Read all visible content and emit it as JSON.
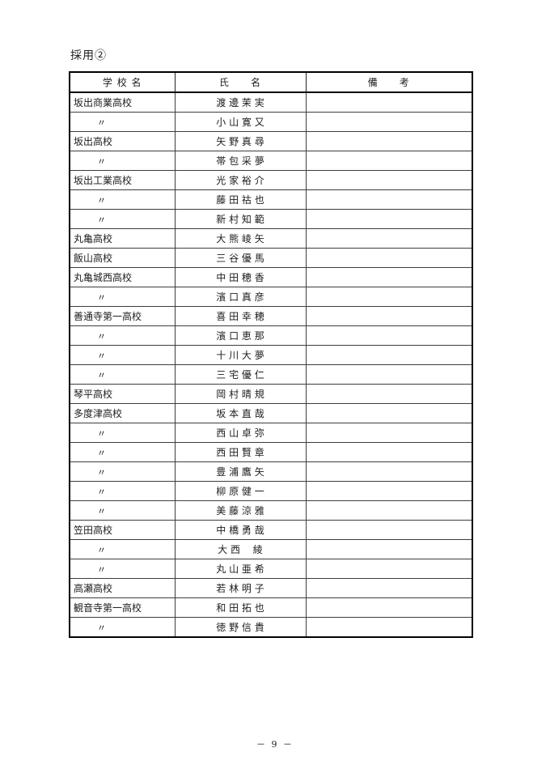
{
  "page": {
    "title": "採用②",
    "page_number": "－ 9 －"
  },
  "table": {
    "headers": {
      "school": "学 校 名",
      "name": "氏　　名",
      "remark": "備　　考"
    },
    "ditto_mark": "〃",
    "rows": [
      {
        "school": "坂出商業高校",
        "name": "渡 邊 茉 実",
        "remark": ""
      },
      {
        "school": "〃",
        "name": "小 山 寛 又",
        "remark": ""
      },
      {
        "school": "坂出高校",
        "name": "矢 野 真 尋",
        "remark": ""
      },
      {
        "school": "〃",
        "name": "帯 包 采 夢",
        "remark": ""
      },
      {
        "school": "坂出工業高校",
        "name": "光 家 裕 介",
        "remark": ""
      },
      {
        "school": "〃",
        "name": "藤 田 祜 也",
        "remark": ""
      },
      {
        "school": "〃",
        "name": "新 村 知 範",
        "remark": ""
      },
      {
        "school": "丸亀高校",
        "name": "大 熊 崚 矢",
        "remark": ""
      },
      {
        "school": "飯山高校",
        "name": "三 谷 優 馬",
        "remark": ""
      },
      {
        "school": "丸亀城西高校",
        "name": "中 田 穂 香",
        "remark": ""
      },
      {
        "school": "〃",
        "name": "濱 口 真 彦",
        "remark": ""
      },
      {
        "school": "善通寺第一高校",
        "name": "喜 田 幸 穂",
        "remark": ""
      },
      {
        "school": "〃",
        "name": "濱 口 恵 那",
        "remark": ""
      },
      {
        "school": "〃",
        "name": "十 川 大 夢",
        "remark": ""
      },
      {
        "school": "〃",
        "name": "三 宅 優 仁",
        "remark": ""
      },
      {
        "school": "琴平高校",
        "name": "岡 村 晴 規",
        "remark": ""
      },
      {
        "school": "多度津高校",
        "name": "坂 本 直 哉",
        "remark": ""
      },
      {
        "school": "〃",
        "name": "西 山 卓 弥",
        "remark": ""
      },
      {
        "school": "〃",
        "name": "西 田 賢 章",
        "remark": ""
      },
      {
        "school": "〃",
        "name": "豊 浦 鷹 矢",
        "remark": ""
      },
      {
        "school": "〃",
        "name": "柳 原 健 一",
        "remark": ""
      },
      {
        "school": "〃",
        "name": "美 藤 涼 雅",
        "remark": ""
      },
      {
        "school": "笠田高校",
        "name": "中 橋 勇 哉",
        "remark": ""
      },
      {
        "school": "〃",
        "name": "大 西　 綾",
        "remark": ""
      },
      {
        "school": "〃",
        "name": "丸 山 亜 希",
        "remark": ""
      },
      {
        "school": "高瀬高校",
        "name": "若 林 明 子",
        "remark": ""
      },
      {
        "school": "観音寺第一高校",
        "name": "和 田 拓 也",
        "remark": ""
      },
      {
        "school": "〃",
        "name": "徳 野 信 貴",
        "remark": ""
      }
    ]
  }
}
